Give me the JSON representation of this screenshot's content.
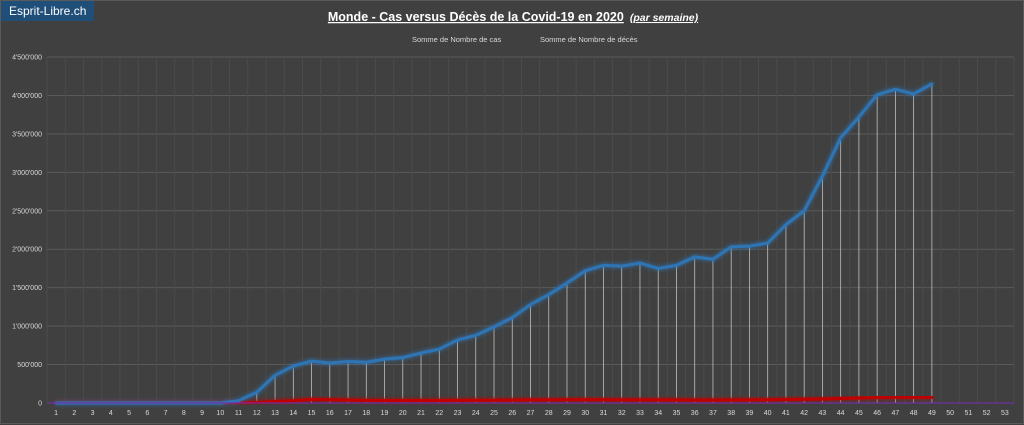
{
  "brand": "Esprit-Libre.ch",
  "chart_data": {
    "type": "line",
    "title": "Monde - Cas versus Décès de la Covid-19 en 2020",
    "subtitle": "(par semaine)",
    "xlabel": "",
    "ylabel": "",
    "ylim": [
      0,
      4500000
    ],
    "y_ticks": [
      "0",
      "500'000",
      "1'000'000",
      "1'500'000",
      "2'000'000",
      "2'500'000",
      "3'000'000",
      "3'500'000",
      "4'000'000",
      "4'500'000"
    ],
    "x": [
      1,
      2,
      3,
      4,
      5,
      6,
      7,
      8,
      9,
      10,
      11,
      12,
      13,
      14,
      15,
      16,
      17,
      18,
      19,
      20,
      21,
      22,
      23,
      24,
      25,
      26,
      27,
      28,
      29,
      30,
      31,
      32,
      33,
      34,
      35,
      36,
      37,
      38,
      39,
      40,
      41,
      42,
      43,
      44,
      45,
      46,
      47,
      48,
      49,
      50,
      51,
      52,
      53
    ],
    "grid": true,
    "legend_position": "top",
    "series": [
      {
        "name": "Somme de Nombre de cas",
        "color": "#2e75b6",
        "values": [
          0,
          0,
          0,
          0,
          0,
          0,
          0,
          0,
          0,
          0,
          30000,
          140000,
          360000,
          480000,
          545000,
          520000,
          540000,
          530000,
          570000,
          590000,
          650000,
          700000,
          820000,
          880000,
          990000,
          1110000,
          1280000,
          1410000,
          1560000,
          1720000,
          1790000,
          1780000,
          1820000,
          1750000,
          1790000,
          1900000,
          1870000,
          2030000,
          2040000,
          2080000,
          2320000,
          2500000,
          2950000,
          3450000,
          3720000,
          4010000,
          4080000,
          4020000,
          4150000,
          null,
          null,
          null,
          null
        ]
      },
      {
        "name": "Somme de Nombre de décès",
        "color": "#c00000",
        "values": [
          0,
          0,
          0,
          0,
          0,
          0,
          0,
          0,
          0,
          0,
          2000,
          6000,
          20000,
          30000,
          45000,
          42000,
          38000,
          34000,
          33000,
          32000,
          32000,
          32000,
          34000,
          35000,
          36000,
          38000,
          40000,
          40000,
          42000,
          43000,
          42000,
          41000,
          41000,
          40000,
          39000,
          38000,
          38000,
          39000,
          40000,
          42000,
          45000,
          48000,
          52000,
          58000,
          65000,
          72000,
          75000,
          75000,
          75000,
          null,
          null,
          null,
          null
        ]
      }
    ]
  }
}
